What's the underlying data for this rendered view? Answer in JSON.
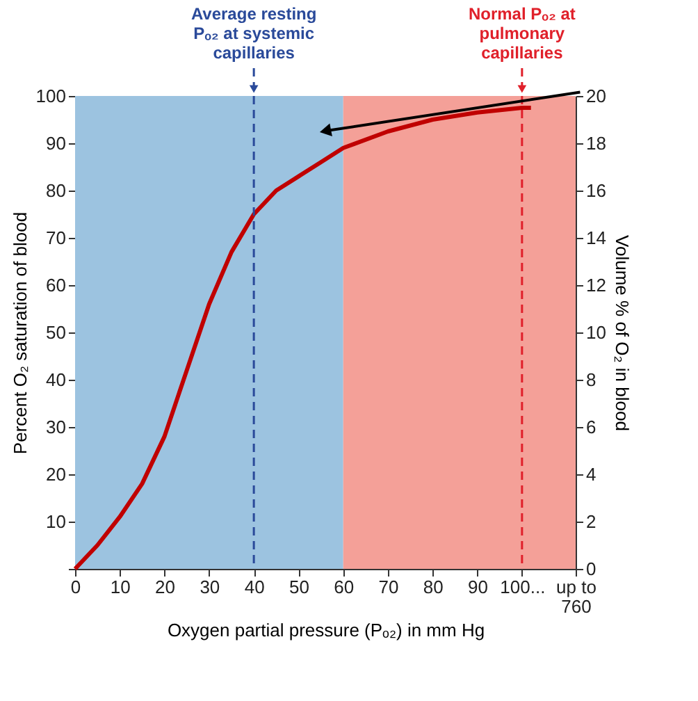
{
  "chart_data": {
    "type": "line",
    "xlabel": "Oxygen partial pressure (Pₒ₂) in mm Hg",
    "ylabel": "Percent O₂ saturation of blood",
    "y2label": "Volume % of O₂ in blood",
    "x": [
      0,
      5,
      10,
      15,
      20,
      25,
      30,
      35,
      40,
      45,
      50,
      55,
      60,
      70,
      80,
      90,
      100,
      102
    ],
    "series": [
      {
        "color": "#c00000",
        "values": [
          0,
          5,
          11,
          18,
          28,
          42,
          56,
          67,
          75,
          80,
          83,
          86,
          89,
          92.5,
          95,
          96.5,
          97.5,
          97.5
        ]
      }
    ],
    "xlim": [
      0,
      112
    ],
    "xticks": [
      0,
      10,
      20,
      30,
      40,
      50,
      60,
      70,
      80,
      90,
      {
        "value": 100,
        "label": "100..."
      },
      {
        "value": 112,
        "label": "up to 760"
      }
    ],
    "ylim": [
      0,
      100
    ],
    "yticks": [
      {
        "value": 0,
        "label": null
      },
      10,
      20,
      30,
      40,
      50,
      60,
      70,
      80,
      90,
      100
    ],
    "y2lim": [
      0,
      20
    ],
    "y2ticks": [
      0,
      2,
      4,
      6,
      8,
      10,
      12,
      14,
      16,
      18,
      20
    ],
    "bands": [
      {
        "axis": "x",
        "from": 0,
        "to": 60,
        "color": "#9cc3e0"
      },
      {
        "axis": "x",
        "from": 60,
        "to": 112,
        "color": "#f4a098"
      }
    ],
    "ref_lines": [
      {
        "axis": "x",
        "value": 40,
        "label": "Average resting Pₒ₂ at systemic capillaries",
        "color": "#2a4a9a",
        "line_style": "dashed"
      },
      {
        "axis": "x",
        "value": 100,
        "label": "Normal Pₒ₂ at pulmonary capillaries",
        "color": "#e0202a",
        "line_style": "dashed"
      }
    ],
    "grid": false,
    "marker": "none",
    "line_style": "solid"
  }
}
